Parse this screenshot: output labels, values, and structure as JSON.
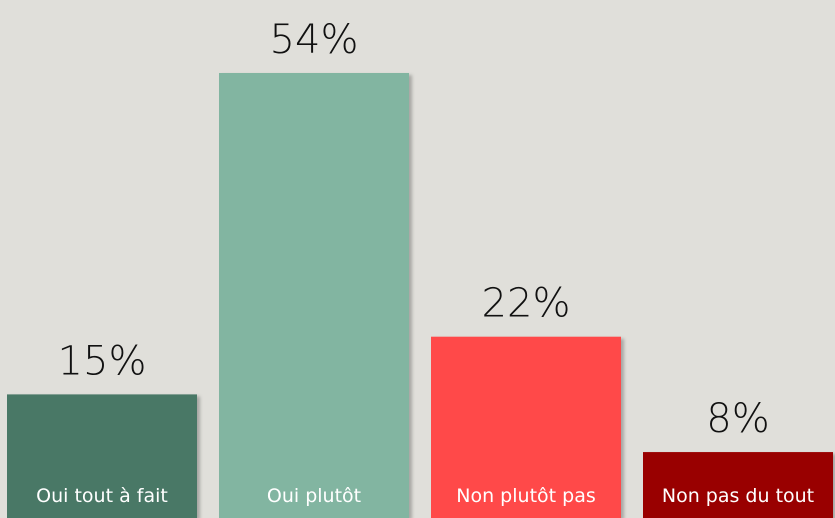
{
  "chart_data": {
    "type": "bar",
    "categories": [
      "Oui tout à fait",
      "Oui plutôt",
      "Non plutôt pas",
      "Non pas du tout"
    ],
    "values": [
      15,
      54,
      22,
      8
    ],
    "value_labels": [
      "15%",
      "54%",
      "22%",
      "8%"
    ],
    "colors": [
      "#4a7866",
      "#82b5a1",
      "#ff4a4a",
      "#990000"
    ]
  }
}
